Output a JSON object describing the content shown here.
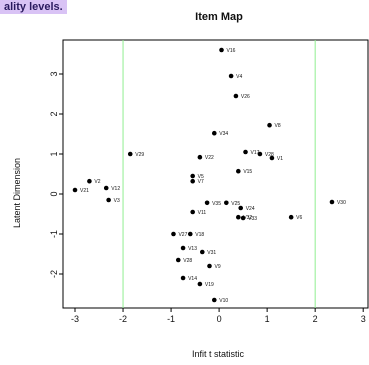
{
  "top_text": "ality levels.",
  "chart_data": {
    "type": "scatter",
    "title": "Item Map",
    "xlabel": "Infit t statistic",
    "ylabel": "Latent Dimension",
    "xlim": [
      -3.25,
      3.1
    ],
    "ylim": [
      -2.85,
      3.85
    ],
    "xticks": [
      "-3",
      "-2",
      "-1",
      "0",
      "1",
      "2",
      "3"
    ],
    "yticks": [
      "-2",
      "-1",
      "0",
      "1",
      "2",
      "3"
    ],
    "reference_lines_x": [
      -2,
      2
    ],
    "reference_line_color": "#90ee90",
    "point_color": "#000000",
    "grid": false,
    "points": [
      {
        "label": "V16",
        "x": 0.05,
        "y": 3.6
      },
      {
        "label": "V4",
        "x": 0.25,
        "y": 2.95
      },
      {
        "label": "V26",
        "x": 0.35,
        "y": 2.45
      },
      {
        "label": "V8",
        "x": 1.05,
        "y": 1.72
      },
      {
        "label": "V34",
        "x": -0.1,
        "y": 1.52
      },
      {
        "label": "V29",
        "x": -1.85,
        "y": 1.0
      },
      {
        "label": "V22",
        "x": -0.4,
        "y": 0.92
      },
      {
        "label": "V17",
        "x": 0.55,
        "y": 1.05
      },
      {
        "label": "V28",
        "x": 0.85,
        "y": 1.0
      },
      {
        "label": "V1",
        "x": 1.1,
        "y": 0.9
      },
      {
        "label": "V15",
        "x": 0.4,
        "y": 0.57
      },
      {
        "label": "V5",
        "x": -0.55,
        "y": 0.45
      },
      {
        "label": "V7",
        "x": -0.55,
        "y": 0.32
      },
      {
        "label": "V2",
        "x": -2.7,
        "y": 0.32
      },
      {
        "label": "V12",
        "x": -2.35,
        "y": 0.15
      },
      {
        "label": "V21",
        "x": -3.0,
        "y": 0.1
      },
      {
        "label": "V3",
        "x": -2.3,
        "y": -0.15
      },
      {
        "label": "V35",
        "x": -0.25,
        "y": -0.22
      },
      {
        "label": "V25",
        "x": 0.15,
        "y": -0.22
      },
      {
        "label": "V24",
        "x": 0.45,
        "y": -0.35
      },
      {
        "label": "V30",
        "x": 2.35,
        "y": -0.2
      },
      {
        "label": "V11",
        "x": -0.55,
        "y": -0.45
      },
      {
        "label": "V32",
        "x": 0.4,
        "y": -0.58
      },
      {
        "label": "V33",
        "x": 0.5,
        "y": -0.6
      },
      {
        "label": "V6",
        "x": 1.5,
        "y": -0.58
      },
      {
        "label": "V27",
        "x": -0.95,
        "y": -1.0
      },
      {
        "label": "V18",
        "x": -0.6,
        "y": -1.0
      },
      {
        "label": "V13",
        "x": -0.75,
        "y": -1.35
      },
      {
        "label": "V31",
        "x": -0.35,
        "y": -1.45
      },
      {
        "label": "V28",
        "x": -0.85,
        "y": -1.65
      },
      {
        "label": "V9",
        "x": -0.2,
        "y": -1.8
      },
      {
        "label": "V14",
        "x": -0.75,
        "y": -2.1
      },
      {
        "label": "V19",
        "x": -0.4,
        "y": -2.25
      },
      {
        "label": "V10",
        "x": -0.1,
        "y": -2.65
      }
    ]
  }
}
